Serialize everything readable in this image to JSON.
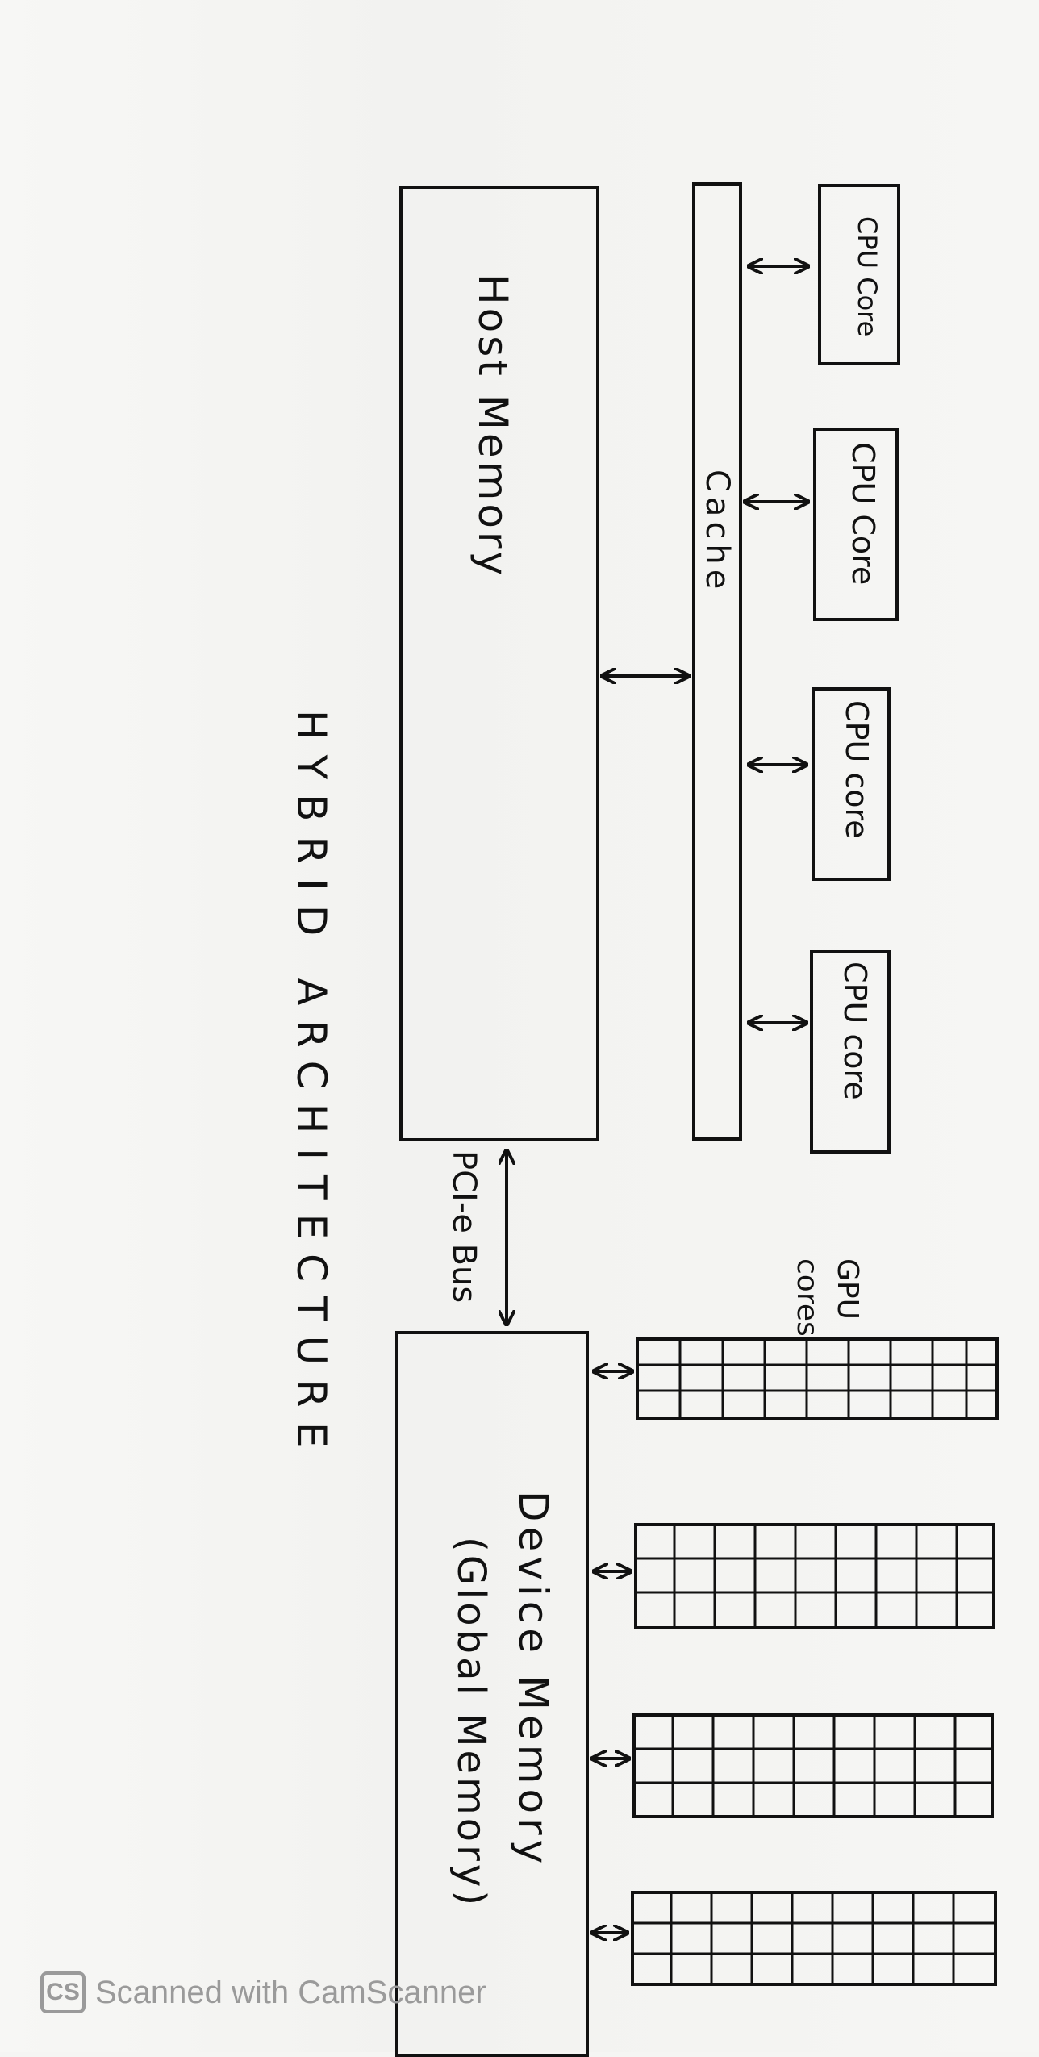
{
  "diagram": {
    "title": "HYBRID ARCHITECTURE",
    "host_memory_label": "Host Memory",
    "cache_label": "Cache",
    "cpu_cores": [
      "CPU Core",
      "CPU Core",
      "CPU core",
      "CPU core"
    ],
    "bus_label": "PCI-e Bus",
    "gpu_cores_label": "GPU cores",
    "device_memory_label": "Device Memory",
    "global_memory_label": "(Global Memory)"
  },
  "footer": {
    "logo_text": "CS",
    "scanner_text": "Scanned with CamScanner"
  }
}
